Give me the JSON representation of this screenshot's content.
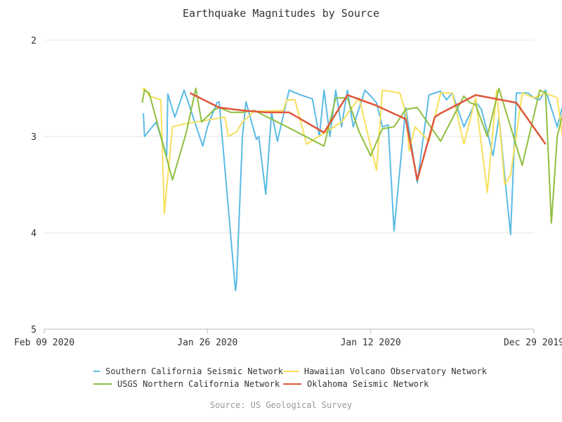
{
  "chart_data": {
    "type": "line",
    "title": "Earthquake Magnitudes by Source",
    "source": "Source: US Geological Survey",
    "y_axis": {
      "reversed": true,
      "min": 2,
      "max": 5,
      "ticks": [
        "2",
        "3",
        "4",
        "5"
      ]
    },
    "x_axis": {
      "ticks": [
        "Feb 09 2020",
        "Jan 26 2020",
        "Jan 12 2020",
        "Dec 29 2019"
      ],
      "tick_positions": [
        0,
        14,
        28,
        42
      ],
      "unit": "days"
    },
    "grid": true,
    "legend": "bottom",
    "series": [
      {
        "name": "Southern California Seismic Network",
        "color": "#5bbbe4",
        "x": [
          8.5,
          8.6,
          9.6,
          10.5,
          10.6,
          11.2,
          12.0,
          13.6,
          14.0,
          14.8,
          15.0,
          16.4,
          16.5,
          17.0,
          17.3,
          18.2,
          18.4,
          19.0,
          19.5,
          20.0,
          21.0,
          22.0,
          23.0,
          23.6,
          24.0,
          24.5,
          25.0,
          25.5,
          26.0,
          26.5,
          27.5,
          28.0,
          28.5,
          29.0,
          29.5,
          30.0,
          31.0,
          32.0,
          33.0,
          33.5,
          34.0,
          34.5,
          35.0,
          36.0,
          37.0,
          37.5,
          38.0,
          38.5,
          39.0,
          40.0,
          40.5,
          41.0,
          41.5,
          42.0,
          42.5,
          43.0,
          44.0,
          44.8,
          45.2,
          45.4
        ],
        "values": [
          2.76,
          3.0,
          2.85,
          3.2,
          2.56,
          2.8,
          2.52,
          3.1,
          2.9,
          2.65,
          2.64,
          4.6,
          4.5,
          3.0,
          2.64,
          3.03,
          3.0,
          3.6,
          2.75,
          3.05,
          2.52,
          2.57,
          2.61,
          3.0,
          2.52,
          3.0,
          2.52,
          2.9,
          2.52,
          2.9,
          2.52,
          2.58,
          2.65,
          2.9,
          2.88,
          3.98,
          2.7,
          3.48,
          2.57,
          2.55,
          2.53,
          2.62,
          2.55,
          2.9,
          2.64,
          2.72,
          2.95,
          3.2,
          2.8,
          4.02,
          2.55,
          2.55,
          2.55,
          2.6,
          2.62,
          2.52,
          2.9,
          2.53,
          2.58,
          3.15
        ]
      },
      {
        "name": "Hawaiian Volcano Observatory Network",
        "color": "#f7df5a",
        "x": [
          8.4,
          8.6,
          9.0,
          10.0,
          10.3,
          11.0,
          12.0,
          14.0,
          15.5,
          15.8,
          16.5,
          17.0,
          18.0,
          20.5,
          20.8,
          21.5,
          22.5,
          25.5,
          27.0,
          28.5,
          29.0,
          30.5,
          31.0,
          31.3,
          31.8,
          33.0,
          34.0,
          35.0,
          36.0,
          37.0,
          38.0,
          38.8,
          39.5,
          40.0,
          41.0,
          42.0,
          43.0,
          44.0,
          44.5,
          45.0,
          45.5
        ],
        "values": [
          2.52,
          2.5,
          2.58,
          2.62,
          3.8,
          2.9,
          2.87,
          2.83,
          2.8,
          3.0,
          2.95,
          2.85,
          2.74,
          2.73,
          2.62,
          2.62,
          3.08,
          2.85,
          2.6,
          3.35,
          2.52,
          2.55,
          2.75,
          3.15,
          2.9,
          3.05,
          2.55,
          2.55,
          3.08,
          2.6,
          3.58,
          2.52,
          3.5,
          3.4,
          2.55,
          2.6,
          2.55,
          2.6,
          3.05,
          2.5,
          2.7
        ]
      },
      {
        "name": "USGS Northern California Network",
        "color": "#8fbf3f",
        "x": [
          8.4,
          8.6,
          9.0,
          11.0,
          12.2,
          13.0,
          13.5,
          14.5,
          15.0,
          16.0,
          17.0,
          18.0,
          20.0,
          20.5,
          24.0,
          25.0,
          26.0,
          27.0,
          28.0,
          29.0,
          30.0,
          31.0,
          32.0,
          34.0,
          36.0,
          36.5,
          37.0,
          38.0,
          39.0,
          41.0,
          42.5,
          43.0,
          43.5,
          44.0,
          45.0,
          45.5
        ],
        "values": [
          2.65,
          2.52,
          2.55,
          3.45,
          2.95,
          2.5,
          2.85,
          2.73,
          2.7,
          2.75,
          2.75,
          2.73,
          2.85,
          2.88,
          3.1,
          2.6,
          2.6,
          2.95,
          3.2,
          2.92,
          2.9,
          2.72,
          2.7,
          3.05,
          2.58,
          2.65,
          2.67,
          3.0,
          2.5,
          3.3,
          2.52,
          2.55,
          3.9,
          3.0,
          2.5,
          2.7
        ]
      },
      {
        "name": "Oklahoma Seismic Network",
        "color": "#e0563a",
        "x": [
          12.5,
          15.0,
          17.0,
          19.0,
          21.0,
          24.0,
          26.0,
          28.5,
          31.0,
          32.0,
          33.5,
          34.0,
          37.0,
          40.5,
          43.0
        ],
        "values": [
          2.55,
          2.7,
          2.73,
          2.75,
          2.75,
          2.96,
          2.57,
          2.68,
          2.82,
          3.45,
          2.8,
          2.76,
          2.57,
          2.65,
          3.08
        ]
      }
    ]
  }
}
